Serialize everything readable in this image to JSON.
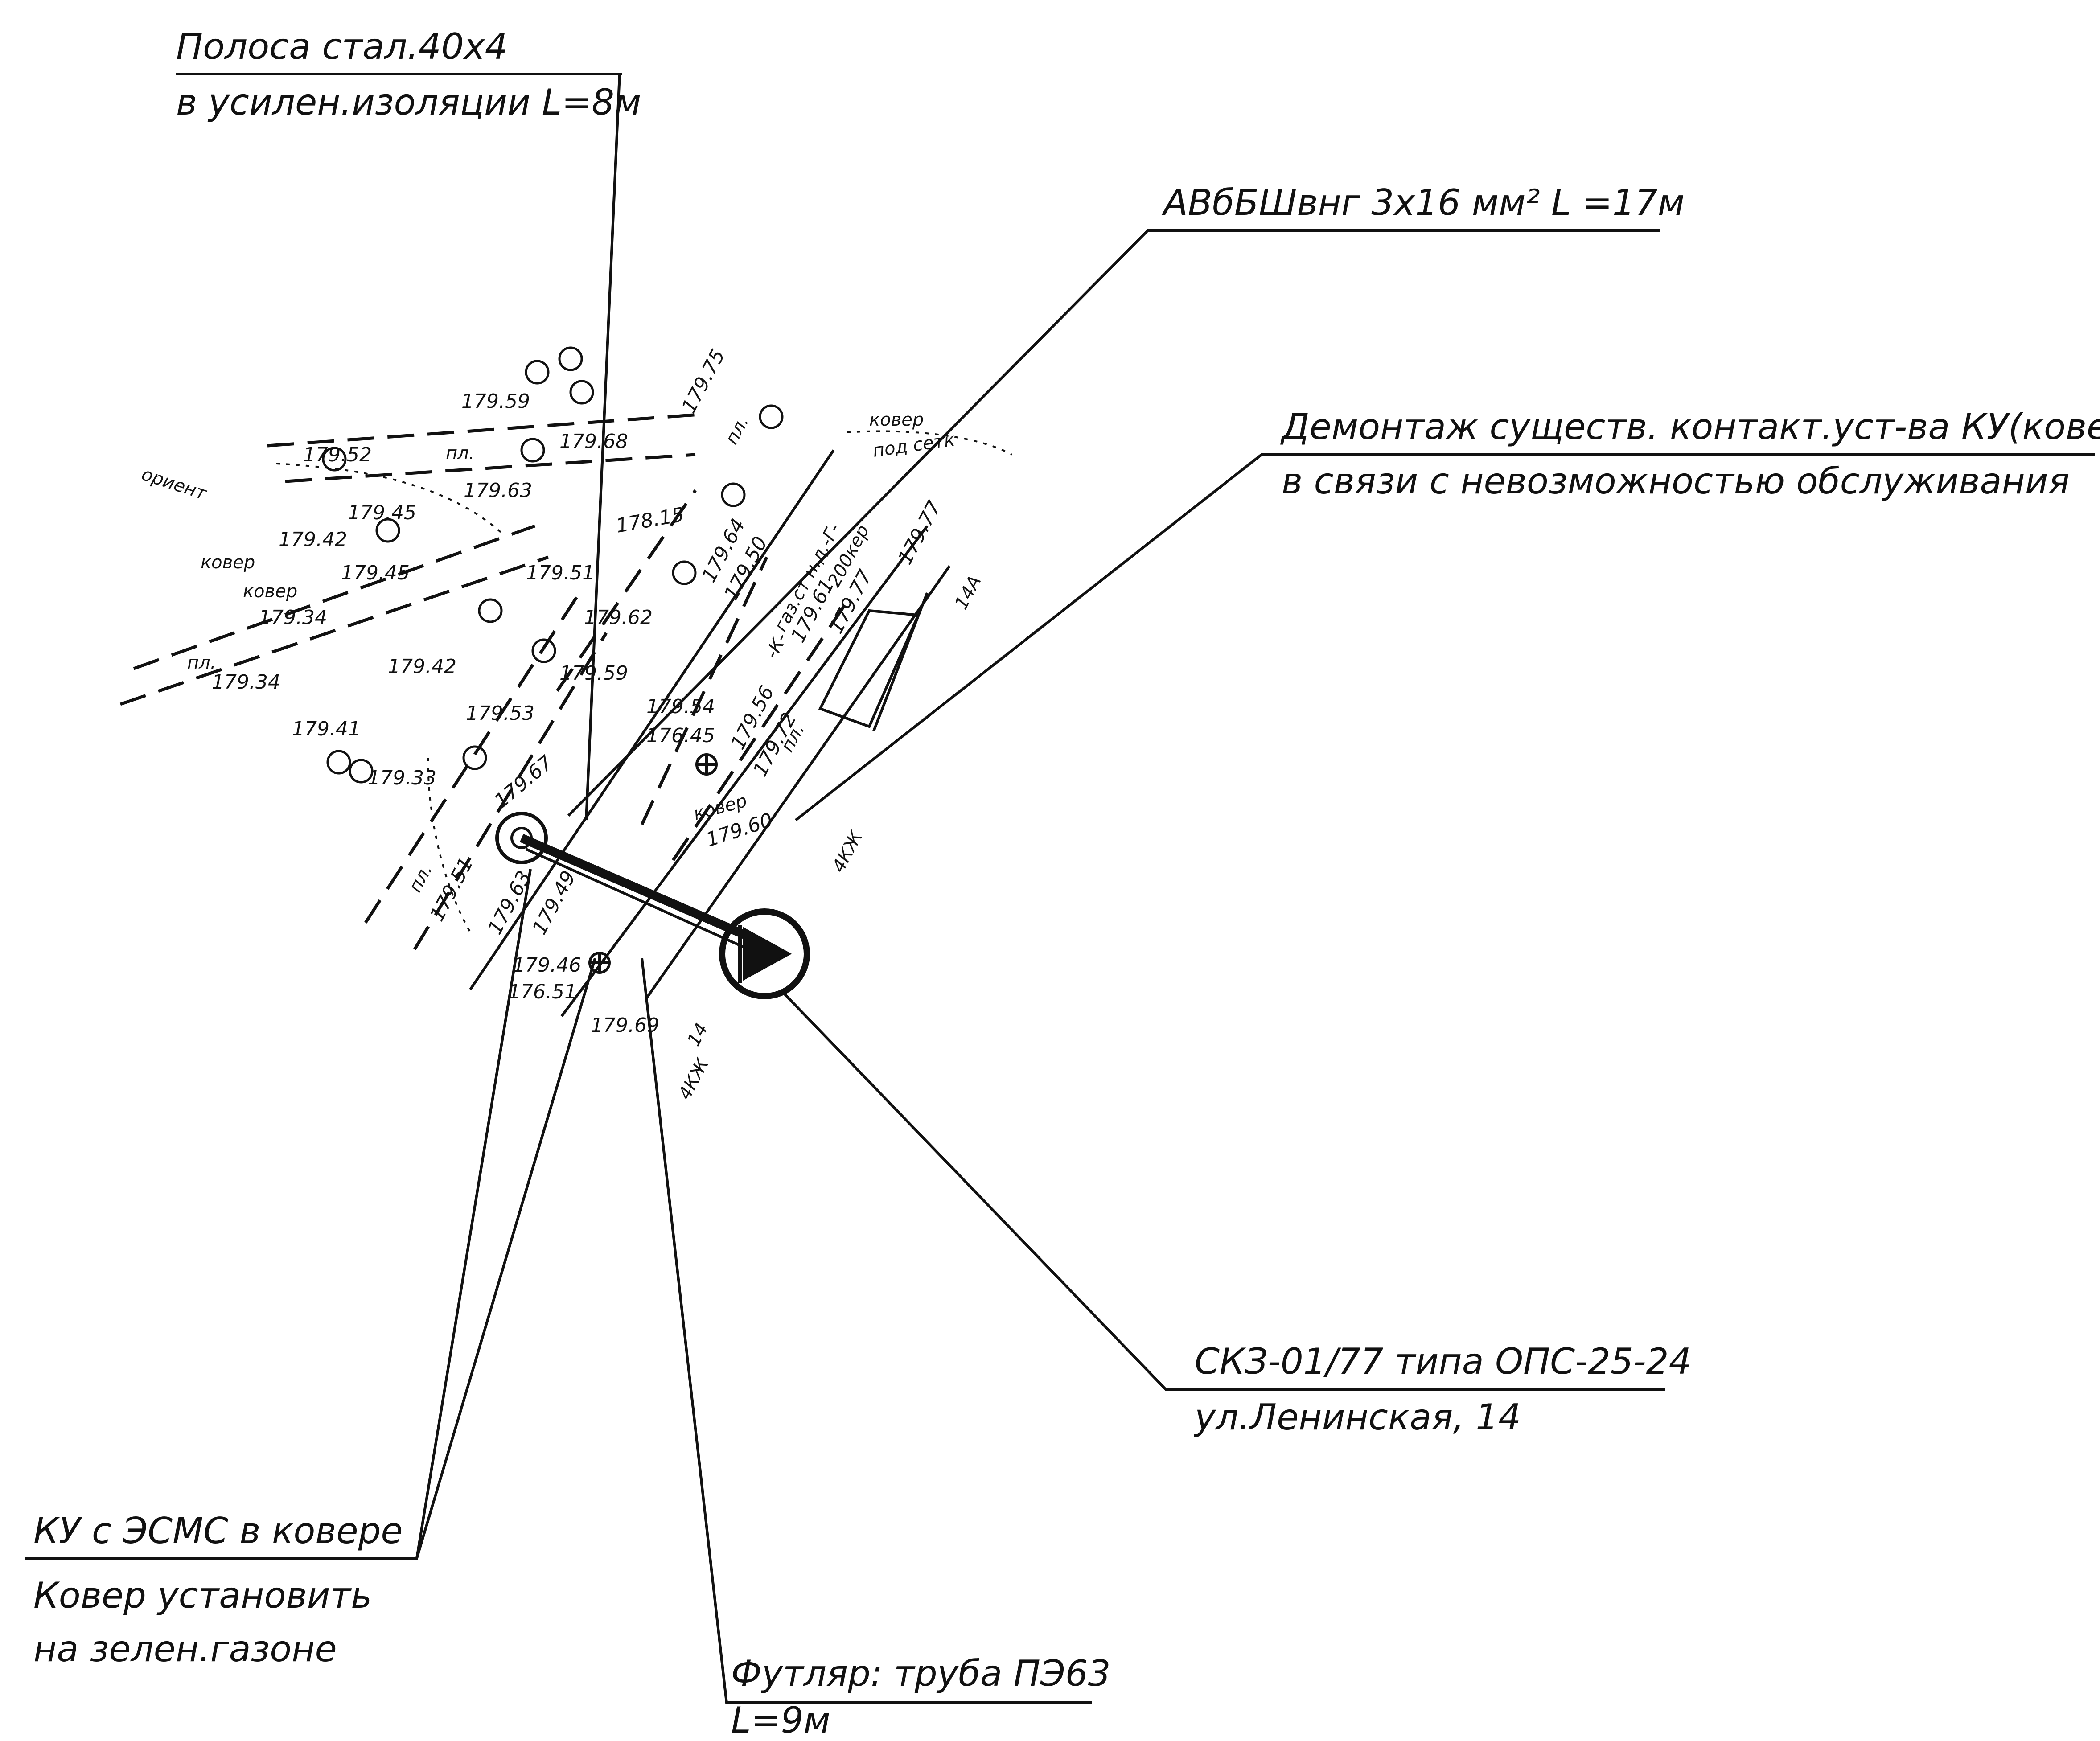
{
  "annotations": {
    "strip_line1": "Полоса стал.40х4",
    "strip_line2": "в усилен.изоляции L=8м",
    "cable_line1": "АВбБШвнг 3х16 мм² L =17м",
    "dismantle_line1": "Демонтаж существ. контакт.уст-ва КУ(ковера)",
    "dismantle_line2": "в связи с невозможностью обслуживания",
    "station_line1": "СКЗ-01/77 типа ОПС-25-24",
    "station_line2": "ул.Ленинская, 14",
    "ku_line1": "КУ с ЭСМС в ковере",
    "ku_line2": "Ковер установить",
    "ku_line3": "на зелен.газоне",
    "case_line1": "Футляр: труба ПЭ63",
    "case_line2": "L=9м"
  },
  "elevations": [
    "179.59",
    "179.52",
    "179.68",
    "179.63",
    "179.45",
    "179.42",
    "179.45",
    "179.34",
    "179.34",
    "179.51",
    "179.62",
    "179.42",
    "179.59",
    "179.41",
    "179.53",
    "179.33",
    "179.75",
    "178.15",
    "179.64",
    "179.50",
    "179.56",
    "179.72",
    "179.54",
    "176.45",
    "179.61",
    "179.77",
    "179.77",
    "179.60",
    "179.67",
    "179.63",
    "179.49",
    "179.51",
    "179.46",
    "176.51",
    "179.69"
  ],
  "labels": {
    "kover_a": "ковер",
    "kover_b": "ковер",
    "kover_c": "ковер",
    "kover_d": "ковер",
    "pod_setk": "под сетк",
    "orient": "ориент",
    "pl_a": "пл.",
    "pl_b": "пл.",
    "pl_c": "пл.",
    "pl_d": "пл.",
    "pl_e": "пл.",
    "gaz": "газ.ст н.д.-Г-",
    "kab": "-К-",
    "kep": "200кер",
    "n_14a": "14А",
    "n_14": "14",
    "n_4kzh_a": "4КЖ",
    "n_4kzh_b": "4КЖ"
  }
}
